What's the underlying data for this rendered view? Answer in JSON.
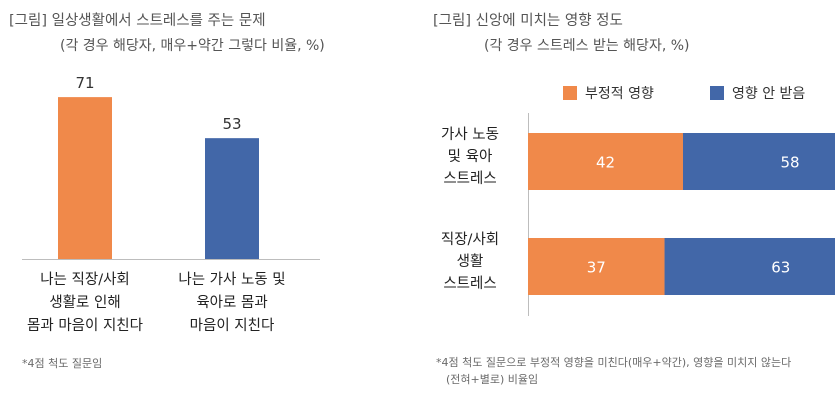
{
  "left": {
    "title": "[그림] 일상생활에서 스트레스를 주는 문제",
    "subtitle": "(각 경우 해당자, 매우+약간 그렇다 비율, %)",
    "note": "*4점 척도 질문임"
  },
  "right": {
    "title": "[그림] 신앙에 미치는 영향 정도",
    "subtitle": "(각 경우 스트레스 받는 해당자, %)",
    "note_line1": "*4점 척도 질문으로 부정적 영향을 미친다(매우+약간), 영향을 미치지 않는다",
    "note_line2": "(전혀+별로) 비율임"
  },
  "colors": {
    "orange": "#F0894A",
    "blue": "#4267A8"
  },
  "chart_data": [
    {
      "type": "bar",
      "categories": [
        "나는 직장/사회 생활로 인해 몸과 마음이 지친다",
        "나는 가사 노동 및 육아로 몸과 마음이 지친다"
      ],
      "category_lines": [
        [
          "나는 직장/사회",
          "생활로 인해",
          "몸과 마음이 지친다"
        ],
        [
          "나는 가사 노동 및",
          "육아로 몸과",
          "마음이 지친다"
        ]
      ],
      "values": [
        71,
        53
      ],
      "bar_colors": [
        "#F0894A",
        "#4267A8"
      ],
      "ylim": [
        0,
        80
      ],
      "grid": false
    },
    {
      "type": "bar",
      "orientation": "horizontal",
      "stacked": true,
      "categories": [
        "가사 노동 및 육아 스트레스",
        "직장/사회 생활 스트레스"
      ],
      "category_lines": [
        [
          "가사 노동",
          "및 육아",
          "스트레스"
        ],
        [
          "직장/사회",
          "생활",
          "스트레스"
        ]
      ],
      "series": [
        {
          "name": "부정적 영향",
          "values": [
            42,
            37
          ],
          "color": "#F0894A"
        },
        {
          "name": "영향 안 받음",
          "values": [
            58,
            63
          ],
          "color": "#4267A8"
        }
      ],
      "xlim": [
        0,
        100
      ],
      "legend": "top-right",
      "grid": false
    }
  ]
}
